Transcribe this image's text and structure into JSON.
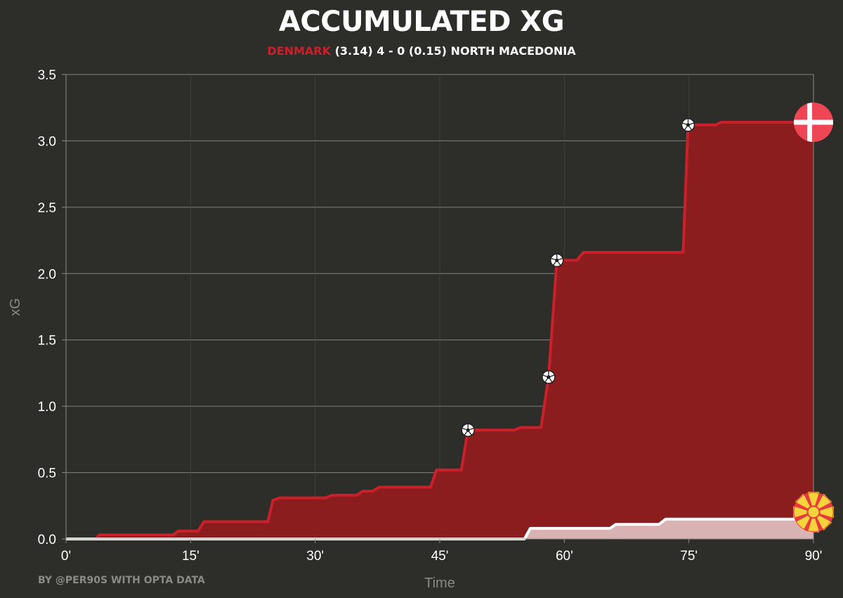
{
  "colors": {
    "background": "#2d2d2a",
    "home_line": "#c9202a",
    "home_fill": "#8b1d1f",
    "away_line": "#ffffff",
    "away_fill": "#d9b3b3",
    "grid": "#8a8a85"
  },
  "subtitle": {
    "home_team": "DENMARK",
    "score_text": "(3.14) 4 - 0 (0.15) NORTH MACEDONIA"
  },
  "credit": "BY @PER90S WITH OPTA DATA",
  "icons": {
    "goal": "soccer-ball-icon",
    "home_badge": "denmark-flag-icon",
    "away_badge": "north-macedonia-flag-icon"
  },
  "chart_data": {
    "type": "area",
    "title": "ACCUMULATED XG",
    "xlabel": "Time",
    "ylabel": "xG",
    "xlim": [
      0,
      90
    ],
    "ylim": [
      0,
      3.5
    ],
    "x_ticks": [
      0,
      15,
      30,
      45,
      60,
      75,
      90
    ],
    "x_tick_labels": [
      "0'",
      "15'",
      "30'",
      "45'",
      "60'",
      "75'",
      "90'"
    ],
    "y_ticks": [
      0,
      0.5,
      1,
      1.5,
      2,
      2.5,
      3,
      3.5
    ],
    "y_tick_labels": [
      "0.0",
      "0.5",
      "1.0",
      "1.5",
      "2.0",
      "2.5",
      "3.0",
      "3.5"
    ],
    "grid": true,
    "series": [
      {
        "name": "DENMARK",
        "final_xg": 3.14,
        "goals": 4,
        "points": [
          [
            0,
            0
          ],
          [
            3.6,
            0
          ],
          [
            4,
            0.03
          ],
          [
            12.9,
            0.03
          ],
          [
            13.5,
            0.06
          ],
          [
            15.9,
            0.06
          ],
          [
            16.6,
            0.13
          ],
          [
            24.3,
            0.13
          ],
          [
            24.9,
            0.29
          ],
          [
            25.7,
            0.31
          ],
          [
            31.3,
            0.31
          ],
          [
            32,
            0.33
          ],
          [
            35,
            0.33
          ],
          [
            35.7,
            0.36
          ],
          [
            36.9,
            0.36
          ],
          [
            37.7,
            0.39
          ],
          [
            43.9,
            0.39
          ],
          [
            44.6,
            0.52
          ],
          [
            47.6,
            0.52
          ],
          [
            48.4,
            0.82
          ],
          [
            54,
            0.82
          ],
          [
            54.7,
            0.84
          ],
          [
            57.2,
            0.84
          ],
          [
            58.1,
            1.22
          ],
          [
            59.1,
            2.1
          ],
          [
            61.5,
            2.1
          ],
          [
            62.3,
            2.16
          ],
          [
            74.3,
            2.16
          ],
          [
            74.9,
            3.12
          ],
          [
            78.2,
            3.12
          ],
          [
            78.9,
            3.14
          ],
          [
            90,
            3.14
          ]
        ],
        "goal_events": [
          [
            48.4,
            0.82
          ],
          [
            58.1,
            1.22
          ],
          [
            59.1,
            2.1
          ],
          [
            74.9,
            3.12
          ]
        ]
      },
      {
        "name": "NORTH MACEDONIA",
        "final_xg": 0.15,
        "goals": 0,
        "points": [
          [
            0,
            0
          ],
          [
            55.2,
            0
          ],
          [
            55.9,
            0.08
          ],
          [
            65.5,
            0.08
          ],
          [
            66.2,
            0.11
          ],
          [
            71.4,
            0.11
          ],
          [
            72.2,
            0.15
          ],
          [
            90,
            0.15
          ]
        ],
        "goal_events": []
      }
    ]
  }
}
